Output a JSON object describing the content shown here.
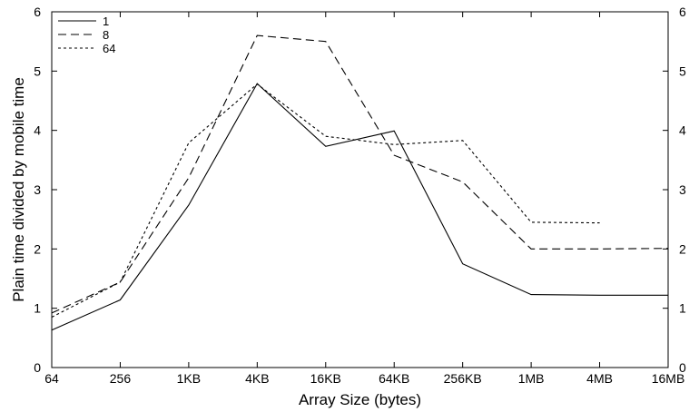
{
  "chart_data": {
    "type": "line",
    "xlabel": "Array Size (bytes)",
    "ylabel": "Plain time divided by mobile time",
    "categories": [
      "64",
      "256",
      "1KB",
      "4KB",
      "16KB",
      "64KB",
      "256KB",
      "1MB",
      "4MB",
      "16MB"
    ],
    "ylim": [
      0,
      6
    ],
    "yticks": [
      "0",
      "1",
      "2",
      "3",
      "4",
      "5",
      "6"
    ],
    "y2ticks": [
      "0",
      "1",
      "2",
      "3",
      "4",
      "5",
      "6"
    ],
    "grid": false,
    "legend_position": "top-left",
    "series": [
      {
        "name": "1",
        "dash": "solid",
        "values": [
          0.63,
          1.14,
          2.74,
          4.79,
          3.73,
          3.99,
          1.75,
          1.23,
          1.22,
          1.22
        ]
      },
      {
        "name": "8",
        "dash": "dashed",
        "values": [
          0.92,
          1.44,
          3.2,
          5.6,
          5.5,
          3.58,
          3.13,
          2.0,
          2.0,
          2.01
        ]
      },
      {
        "name": "64",
        "dash": "dotted",
        "values": [
          0.85,
          1.44,
          3.79,
          4.78,
          3.9,
          3.76,
          3.83,
          2.45,
          2.44,
          null
        ]
      }
    ]
  }
}
